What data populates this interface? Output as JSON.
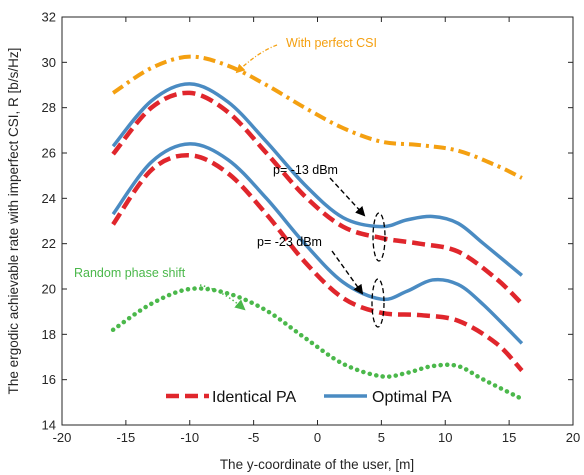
{
  "chart_data": {
    "type": "line",
    "xlabel": "The y-coordinate of the user, [m]",
    "ylabel": "The ergodic achievable rate with imperfect CSI, R [b/s/Hz]",
    "xlim": [
      -20,
      20
    ],
    "ylim": [
      14,
      32
    ],
    "xticks": [
      -20,
      -15,
      -10,
      -5,
      0,
      5,
      10,
      15,
      20
    ],
    "yticks": [
      14,
      16,
      18,
      20,
      22,
      24,
      26,
      28,
      30,
      32
    ],
    "grid": false,
    "legend": {
      "position": "bottom-center",
      "entries": [
        {
          "label": "Identical PA",
          "color": "#e0262c",
          "style": "dashed"
        },
        {
          "label": "Optimal PA",
          "color": "#4a8bc2",
          "style": "solid"
        }
      ]
    },
    "annotations": [
      {
        "text": "With perfect CSI",
        "color": "#f4a011"
      },
      {
        "text": "p= -13 dBm",
        "color": "#000000"
      },
      {
        "text": "p= -23 dBm",
        "color": "#000000"
      },
      {
        "text": "Random phase shift",
        "color": "#4bb84b"
      }
    ],
    "series": [
      {
        "color": "#f4a011",
        "style": "dashdot",
        "x": [
          -16,
          -13,
          -10,
          -7,
          -4,
          -1,
          2,
          5,
          8,
          11,
          14,
          16
        ],
        "y": [
          28.65,
          29.75,
          30.25,
          29.85,
          29.0,
          28.0,
          27.1,
          26.5,
          26.35,
          26.1,
          25.45,
          24.9
        ]
      },
      {
        "color": "#4a8bc2",
        "style": "solid",
        "x": [
          -16,
          -13,
          -10,
          -7,
          -4,
          -1,
          2,
          5,
          7,
          9,
          11,
          13,
          16
        ],
        "y": [
          26.3,
          28.3,
          29.05,
          28.25,
          26.5,
          24.6,
          23.15,
          22.75,
          23.05,
          23.2,
          22.9,
          22.0,
          20.6
        ]
      },
      {
        "color": "#e0262c",
        "style": "dashed",
        "x": [
          -16,
          -13,
          -10,
          -7,
          -4,
          -1,
          2,
          5,
          8,
          11,
          14,
          16
        ],
        "y": [
          25.95,
          28.0,
          28.65,
          27.8,
          26.0,
          24.1,
          22.75,
          22.25,
          22.0,
          21.65,
          20.45,
          19.35
        ]
      },
      {
        "color": "#4a8bc2",
        "style": "solid",
        "x": [
          -16,
          -13,
          -10,
          -7,
          -4,
          -1,
          2,
          5,
          7,
          9,
          11,
          13,
          16
        ],
        "y": [
          23.3,
          25.6,
          26.4,
          25.7,
          24.0,
          22.0,
          20.3,
          19.55,
          19.9,
          20.4,
          20.2,
          19.3,
          17.6
        ]
      },
      {
        "color": "#e0262c",
        "style": "dashed",
        "x": [
          -16,
          -13,
          -10,
          -7,
          -4,
          -1,
          2,
          5,
          8,
          11,
          14,
          16
        ],
        "y": [
          22.85,
          25.25,
          25.9,
          25.1,
          23.3,
          21.2,
          19.6,
          18.95,
          18.85,
          18.6,
          17.6,
          16.4
        ]
      },
      {
        "color": "#4bb84b",
        "style": "dotted",
        "x": [
          -16,
          -13,
          -10,
          -7,
          -4,
          -1,
          2,
          5,
          7,
          9,
          11,
          13,
          16
        ],
        "y": [
          18.2,
          19.35,
          20.0,
          19.8,
          19.05,
          17.85,
          16.7,
          16.15,
          16.3,
          16.6,
          16.6,
          16.0,
          15.15
        ]
      }
    ]
  }
}
